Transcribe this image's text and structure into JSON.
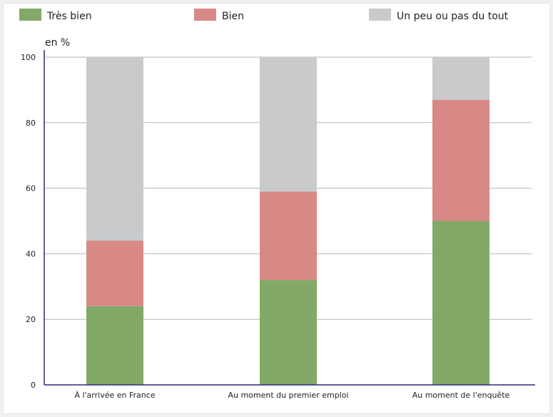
{
  "chart_data": {
    "type": "bar",
    "stacked": true,
    "categories": [
      "À l'arrivée en France",
      "Au moment du premier emploi",
      "Au moment de l'enquête"
    ],
    "series": [
      {
        "name": "Très bien",
        "color": "#82a967",
        "values": [
          24,
          32,
          50
        ]
      },
      {
        "name": "Bien",
        "color": "#d88985",
        "values": [
          20,
          27,
          37
        ]
      },
      {
        "name": "Un peu ou pas du tout",
        "color": "#c9cacc",
        "values": [
          56,
          41,
          13
        ]
      }
    ],
    "ylabel": "en %",
    "ylim": [
      0,
      100
    ],
    "yticks": [
      0,
      20,
      40,
      60,
      80,
      100
    ],
    "legend_position": "top",
    "grid": true
  }
}
